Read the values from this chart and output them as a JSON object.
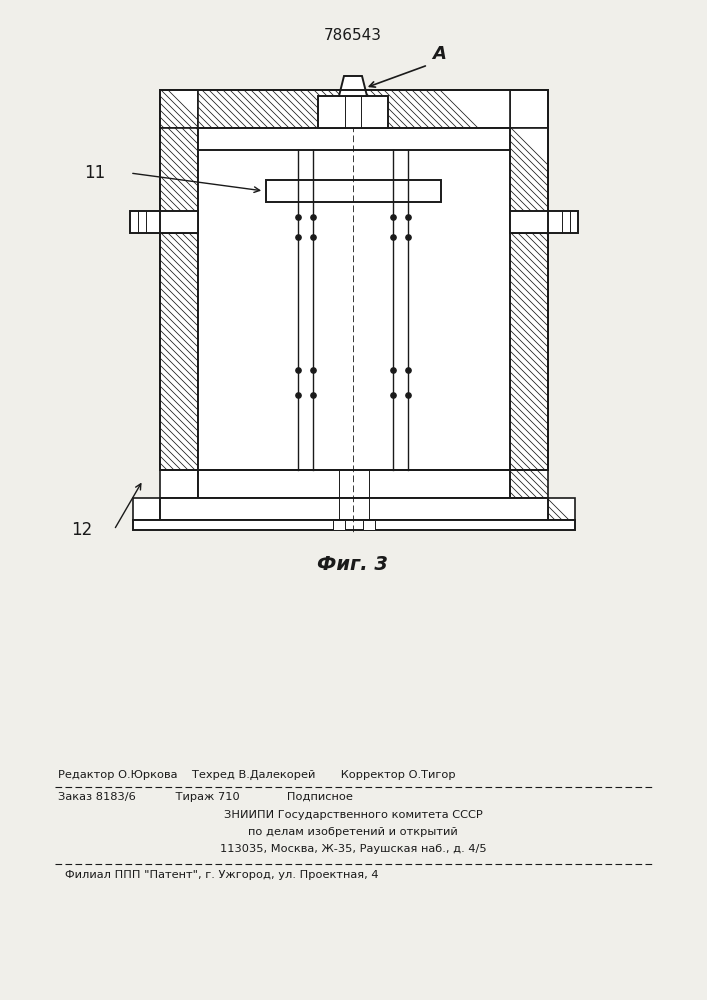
{
  "patent_number": "786543",
  "fig_label": "Фиг. 3",
  "label_A": "А",
  "label_11": "11",
  "label_12": "12",
  "footer_line1": "Редактор О.Юркова    Техред В.Далекорей       Корректор О.Тигор",
  "footer_line2": "Заказ 8183/6           Тираж 710             Подписное",
  "footer_line3": "ЗНИИПИ Государственного комитета СССР",
  "footer_line4": "по делам изобретений и открытий",
  "footer_line5": "113035, Москва, Ж-35, Раушская наб., д. 4/5",
  "footer_line6": "Филиал ППП \"Патент\", г. Ужгород, ул. Проектная, 4",
  "bg_color": "#f0efea",
  "line_color": "#1a1a1a"
}
